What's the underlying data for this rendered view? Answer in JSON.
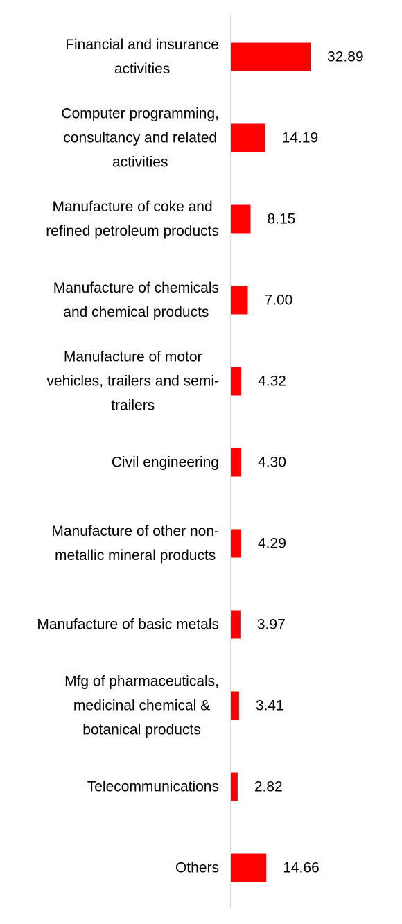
{
  "chart_data": {
    "type": "bar",
    "orientation": "horizontal",
    "title": "",
    "xlabel": "",
    "ylabel": "",
    "xlim": [
      0,
      35
    ],
    "grid": false,
    "legend": "none",
    "bar_color": "#ff0000",
    "axis_color": "#d9d9d9",
    "categories": [
      [
        "Financial and insurance",
        "activities"
      ],
      [
        "Computer programming,",
        "consultancy and related",
        "activities"
      ],
      [
        "Manufacture of coke and",
        "refined petroleum products"
      ],
      [
        "Manufacture of chemicals",
        "and chemical products"
      ],
      [
        "Manufacture of motor",
        "vehicles, trailers and semi-",
        "trailers"
      ],
      [
        "Civil engineering"
      ],
      [
        "Manufacture of other non-",
        "metallic mineral products"
      ],
      [
        "Manufacture of basic metals"
      ],
      [
        "Mfg of pharmaceuticals,",
        "medicinal chemical &",
        "botanical products"
      ],
      [
        "Telecommunications"
      ],
      [
        "Others"
      ]
    ],
    "values": [
      32.89,
      14.19,
      8.15,
      7.0,
      4.32,
      4.3,
      4.29,
      3.97,
      3.41,
      2.82,
      14.66
    ],
    "value_labels": [
      "32.89",
      "14.19",
      "8.15",
      "7.00",
      "4.32",
      "4.30",
      "4.29",
      "3.97",
      "3.41",
      "2.82",
      "14.66"
    ]
  }
}
